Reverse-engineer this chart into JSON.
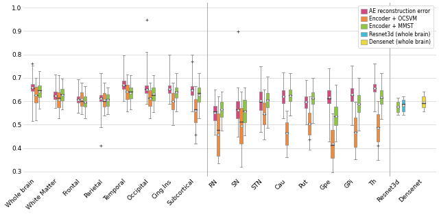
{
  "categories": [
    "Whole brain",
    "White Matter",
    "Frontal",
    "Parietal",
    "Temporal",
    "Occipital",
    "Cing.Ins",
    "Subcortical",
    "RN",
    "SN",
    "STN",
    "Cau",
    "Put",
    "Gpe",
    "GPi",
    "Th",
    "Resnet3d",
    "Densenet"
  ],
  "colors": {
    "AE": "#d44882",
    "OCSVM": "#f5893a",
    "MMST": "#8dc63f",
    "Resnet3d": "#40bcd8",
    "Densenet": "#edd93a"
  },
  "legend_labels": [
    "AE reconstruction error",
    "Encoder + OCSVM",
    "Encoder + MMST",
    "Resnet3d (whole brain)",
    "Densenet (whole brain)"
  ],
  "ylim": [
    0.28,
    1.02
  ],
  "yticks": [
    0.3,
    0.4,
    0.5,
    0.6,
    0.7,
    0.8,
    0.9,
    1.0
  ],
  "background_color": "#ffffff",
  "grid_color": "#e0e0e0",
  "fontsize": 6.5,
  "box_data": {
    "AE": {
      "Whole brain": {
        "med": 0.656,
        "q1": 0.643,
        "q3": 0.672,
        "whislo": 0.515,
        "whishi": 0.752,
        "fliers": [
          0.76
        ]
      },
      "White Matter": {
        "med": 0.623,
        "q1": 0.61,
        "q3": 0.64,
        "whislo": 0.57,
        "whishi": 0.715,
        "fliers": []
      },
      "Frontal": {
        "med": 0.608,
        "q1": 0.595,
        "q3": 0.62,
        "whislo": 0.55,
        "whishi": 0.695,
        "fliers": []
      },
      "Parietal": {
        "med": 0.616,
        "q1": 0.6,
        "q3": 0.626,
        "whislo": 0.49,
        "whishi": 0.72,
        "fliers": [
          0.41
        ]
      },
      "Temporal": {
        "med": 0.668,
        "q1": 0.653,
        "q3": 0.688,
        "whislo": 0.6,
        "whishi": 0.795,
        "fliers": []
      },
      "Occipital": {
        "med": 0.652,
        "q1": 0.636,
        "q3": 0.666,
        "whislo": 0.59,
        "whishi": 0.81,
        "fliers": [
          0.948
        ]
      },
      "Cing.Ins": {
        "med": 0.651,
        "q1": 0.635,
        "q3": 0.668,
        "whislo": 0.588,
        "whishi": 0.8,
        "fliers": []
      },
      "Subcortical": {
        "med": 0.65,
        "q1": 0.628,
        "q3": 0.665,
        "whislo": 0.558,
        "whishi": 0.8,
        "fliers": [
          0.77
        ]
      },
      "RN": {
        "med": 0.556,
        "q1": 0.52,
        "q3": 0.581,
        "whislo": 0.458,
        "whishi": 0.65,
        "fliers": []
      },
      "SN": {
        "med": 0.566,
        "q1": 0.526,
        "q3": 0.6,
        "whislo": 0.45,
        "whishi": 0.66,
        "fliers": [
          0.898
        ]
      },
      "STN": {
        "med": 0.597,
        "q1": 0.562,
        "q3": 0.642,
        "whislo": 0.47,
        "whishi": 0.748,
        "fliers": []
      },
      "Cau": {
        "med": 0.622,
        "q1": 0.592,
        "q3": 0.648,
        "whislo": 0.528,
        "whishi": 0.722,
        "fliers": []
      },
      "Put": {
        "med": 0.597,
        "q1": 0.572,
        "q3": 0.62,
        "whislo": 0.5,
        "whishi": 0.69,
        "fliers": []
      },
      "Gpe": {
        "med": 0.612,
        "q1": 0.592,
        "q3": 0.646,
        "whislo": 0.428,
        "whishi": 0.74,
        "fliers": []
      },
      "GPi": {
        "med": 0.626,
        "q1": 0.6,
        "q3": 0.657,
        "whislo": 0.498,
        "whishi": 0.752,
        "fliers": []
      },
      "Th": {
        "med": 0.656,
        "q1": 0.641,
        "q3": 0.673,
        "whislo": 0.558,
        "whishi": 0.762,
        "fliers": []
      }
    },
    "OCSVM": {
      "Whole brain": {
        "med": 0.626,
        "q1": 0.594,
        "q3": 0.661,
        "whislo": 0.518,
        "whishi": 0.7,
        "fliers": []
      },
      "White Matter": {
        "med": 0.614,
        "q1": 0.574,
        "q3": 0.638,
        "whislo": 0.528,
        "whishi": 0.71,
        "fliers": []
      },
      "Frontal": {
        "med": 0.601,
        "q1": 0.58,
        "q3": 0.638,
        "whislo": 0.546,
        "whishi": 0.68,
        "fliers": []
      },
      "Parietal": {
        "med": 0.601,
        "q1": 0.576,
        "q3": 0.634,
        "whislo": 0.538,
        "whishi": 0.68,
        "fliers": []
      },
      "Temporal": {
        "med": 0.64,
        "q1": 0.61,
        "q3": 0.67,
        "whislo": 0.558,
        "whishi": 0.714,
        "fliers": []
      },
      "Occipital": {
        "med": 0.616,
        "q1": 0.58,
        "q3": 0.646,
        "whislo": 0.528,
        "whishi": 0.68,
        "fliers": []
      },
      "Cing.Ins": {
        "med": 0.601,
        "q1": 0.565,
        "q3": 0.635,
        "whislo": 0.498,
        "whishi": 0.68,
        "fliers": []
      },
      "Subcortical": {
        "med": 0.566,
        "q1": 0.51,
        "q3": 0.61,
        "whislo": 0.418,
        "whishi": 0.665,
        "fliers": [
          0.456
        ]
      },
      "RN": {
        "med": 0.478,
        "q1": 0.368,
        "q3": 0.548,
        "whislo": 0.335,
        "whishi": 0.62,
        "fliers": []
      },
      "SN": {
        "med": 0.512,
        "q1": 0.418,
        "q3": 0.572,
        "whislo": 0.32,
        "whishi": 0.642,
        "fliers": []
      },
      "STN": {
        "med": 0.546,
        "q1": 0.5,
        "q3": 0.595,
        "whislo": 0.438,
        "whishi": 0.65,
        "fliers": []
      },
      "Cau": {
        "med": 0.465,
        "q1": 0.414,
        "q3": 0.51,
        "whislo": 0.362,
        "whishi": 0.56,
        "fliers": []
      },
      "Put": {
        "med": 0.505,
        "q1": 0.458,
        "q3": 0.55,
        "whislo": 0.392,
        "whishi": 0.62,
        "fliers": [
          0.438
        ]
      },
      "Gpe": {
        "med": 0.414,
        "q1": 0.358,
        "q3": 0.478,
        "whislo": 0.298,
        "whishi": 0.548,
        "fliers": []
      },
      "GPi": {
        "med": 0.468,
        "q1": 0.404,
        "q3": 0.53,
        "whislo": 0.352,
        "whishi": 0.598,
        "fliers": []
      },
      "Th": {
        "med": 0.49,
        "q1": 0.428,
        "q3": 0.546,
        "whislo": 0.348,
        "whishi": 0.6,
        "fliers": [
          0.41
        ]
      }
    },
    "MMST": {
      "Whole brain": {
        "med": 0.648,
        "q1": 0.617,
        "q3": 0.667,
        "whislo": 0.568,
        "whishi": 0.73,
        "fliers": []
      },
      "White Matter": {
        "med": 0.629,
        "q1": 0.604,
        "q3": 0.652,
        "whislo": 0.564,
        "whishi": 0.696,
        "fliers": []
      },
      "Frontal": {
        "med": 0.595,
        "q1": 0.576,
        "q3": 0.62,
        "whislo": 0.528,
        "whishi": 0.664,
        "fliers": []
      },
      "Parietal": {
        "med": 0.608,
        "q1": 0.58,
        "q3": 0.63,
        "whislo": 0.546,
        "whishi": 0.66,
        "fliers": []
      },
      "Temporal": {
        "med": 0.64,
        "q1": 0.612,
        "q3": 0.66,
        "whislo": 0.564,
        "whishi": 0.71,
        "fliers": []
      },
      "Occipital": {
        "med": 0.628,
        "q1": 0.604,
        "q3": 0.66,
        "whislo": 0.554,
        "whishi": 0.71,
        "fliers": []
      },
      "Cing.Ins": {
        "med": 0.64,
        "q1": 0.614,
        "q3": 0.66,
        "whislo": 0.556,
        "whishi": 0.72,
        "fliers": []
      },
      "Subcortical": {
        "med": 0.636,
        "q1": 0.596,
        "q3": 0.66,
        "whislo": 0.528,
        "whishi": 0.72,
        "fliers": []
      },
      "RN": {
        "med": 0.566,
        "q1": 0.534,
        "q3": 0.596,
        "whislo": 0.474,
        "whishi": 0.64,
        "fliers": []
      },
      "SN": {
        "med": 0.56,
        "q1": 0.51,
        "q3": 0.606,
        "whislo": 0.454,
        "whishi": 0.66,
        "fliers": []
      },
      "STN": {
        "med": 0.605,
        "q1": 0.574,
        "q3": 0.634,
        "whislo": 0.488,
        "whishi": 0.706,
        "fliers": []
      },
      "Cau": {
        "med": 0.626,
        "q1": 0.6,
        "q3": 0.65,
        "whislo": 0.538,
        "whishi": 0.72,
        "fliers": []
      },
      "Put": {
        "med": 0.612,
        "q1": 0.59,
        "q3": 0.638,
        "whislo": 0.508,
        "whishi": 0.7,
        "fliers": []
      },
      "Gpe": {
        "med": 0.535,
        "q1": 0.498,
        "q3": 0.576,
        "whislo": 0.428,
        "whishi": 0.67,
        "fliers": []
      },
      "GPi": {
        "med": 0.59,
        "q1": 0.554,
        "q3": 0.626,
        "whislo": 0.474,
        "whishi": 0.7,
        "fliers": []
      },
      "Th": {
        "med": 0.616,
        "q1": 0.59,
        "q3": 0.646,
        "whislo": 0.524,
        "whishi": 0.72,
        "fliers": []
      },
      "Resnet3d": {
        "med": 0.578,
        "q1": 0.554,
        "q3": 0.598,
        "whislo": 0.542,
        "whishi": 0.614,
        "fliers": []
      }
    },
    "Resnet3d": {
      "Resnet3d": {
        "med": 0.59,
        "q1": 0.558,
        "q3": 0.606,
        "whislo": 0.542,
        "whishi": 0.622,
        "fliers": []
      }
    },
    "Densenet": {
      "Densenet": {
        "med": 0.592,
        "q1": 0.574,
        "q3": 0.622,
        "whislo": 0.558,
        "whishi": 0.64,
        "fliers": []
      }
    }
  }
}
